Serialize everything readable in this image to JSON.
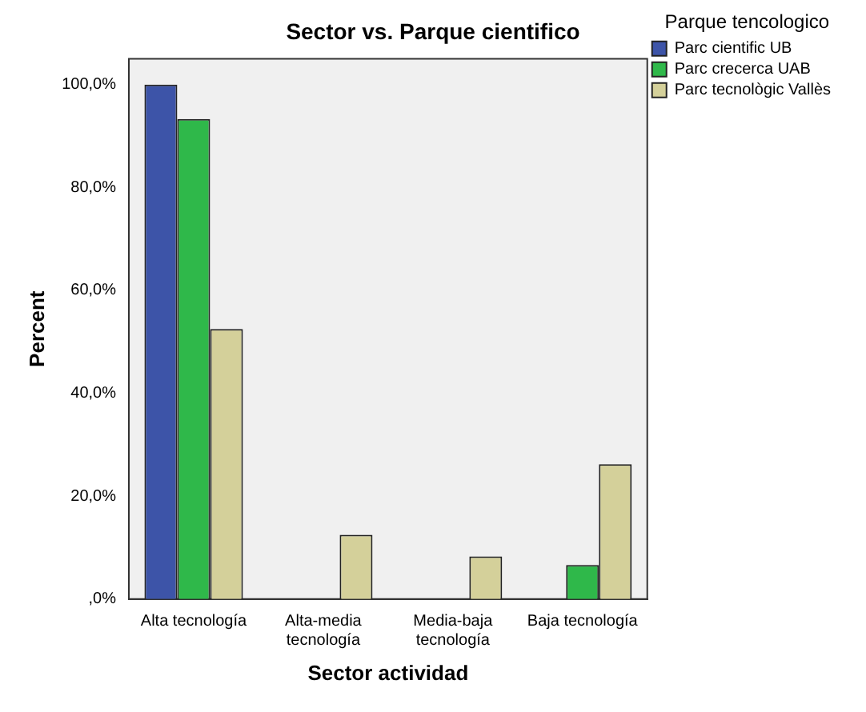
{
  "chart_data": {
    "type": "bar",
    "title": "Sector vs. Parque cientifico",
    "xlabel": "Sector actividad",
    "ylabel": "Percent",
    "legend_title": "Parque tencologico",
    "categories": [
      [
        "Alta tecnología"
      ],
      [
        "Alta-media",
        "tecnología"
      ],
      [
        "Media-baja",
        "tecnología"
      ],
      [
        "Baja tecnología"
      ]
    ],
    "series": [
      {
        "name": "Parc cientific UB",
        "color": "#3d54a8",
        "values": [
          100,
          0,
          0,
          0
        ]
      },
      {
        "name": "Parc crecerca UAB",
        "color": "#2fb84a",
        "values": [
          93.3,
          0,
          0,
          6.6
        ]
      },
      {
        "name": "Parc tecnològic Vallès",
        "color": "#d4d09a",
        "values": [
          52.5,
          12.5,
          8.3,
          26.2
        ]
      }
    ],
    "ylim": [
      0,
      105
    ],
    "yticks": [
      {
        "value": 0,
        "label": ",0%"
      },
      {
        "value": 20,
        "label": "20,0%"
      },
      {
        "value": 40,
        "label": "40,0%"
      },
      {
        "value": 60,
        "label": "60,0%"
      },
      {
        "value": 80,
        "label": "80,0%"
      },
      {
        "value": 100,
        "label": "100,0%"
      }
    ],
    "grid": false,
    "legend": "top right"
  }
}
